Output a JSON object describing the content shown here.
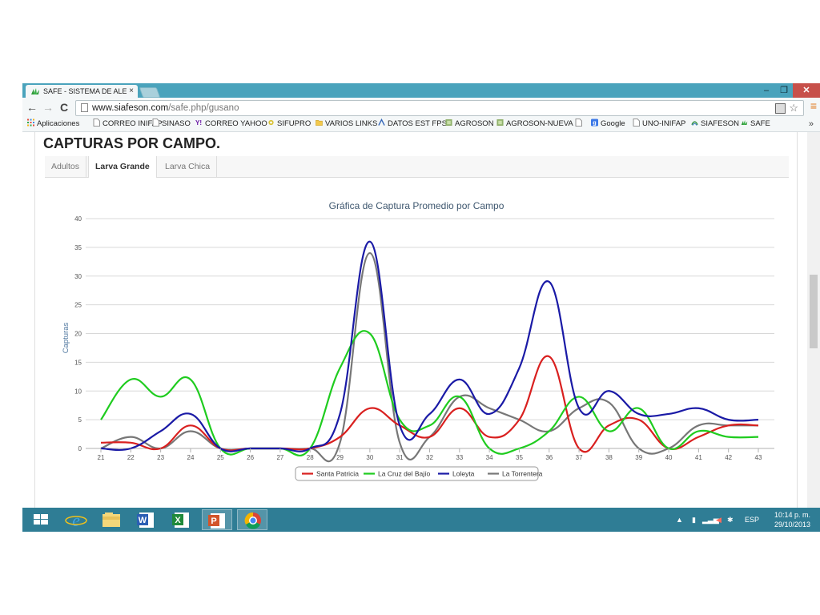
{
  "browser": {
    "tab_title": "SAFE - SISTEMA DE ALERT",
    "tab_close": "×",
    "url_host": "www.siafeson.com",
    "url_path": "/safe.php/gusano",
    "window_buttons": {
      "minimize": "–",
      "restore": "❐",
      "close": "✕"
    },
    "nav": {
      "back": "←",
      "forward": "→",
      "reload": "C"
    }
  },
  "bookmarks": {
    "items": [
      {
        "label": "Aplicaciones",
        "icon": "apps-grid-icon"
      },
      {
        "label": "CORREO INIFAP",
        "icon": "page-icon"
      },
      {
        "label": "SINASO",
        "icon": "page-icon"
      },
      {
        "label": "CORREO YAHOO",
        "icon": "yahoo-icon"
      },
      {
        "label": "SIFUPRO",
        "icon": "sifupro-icon"
      },
      {
        "label": "VARIOS LINKS",
        "icon": "folder-icon"
      },
      {
        "label": "DATOS EST FPS",
        "icon": "chart-icon"
      },
      {
        "label": "AGROSON",
        "icon": "agroson-icon"
      },
      {
        "label": "AGROSON-NUEVA",
        "icon": "agroson-icon"
      },
      {
        "label": "",
        "icon": "page-icon"
      },
      {
        "label": "Google",
        "icon": "google-icon"
      },
      {
        "label": "UNO-INIFAP",
        "icon": "page-icon"
      },
      {
        "label": "SIAFESON",
        "icon": "siafeson-icon"
      },
      {
        "label": "SAFE",
        "icon": "safe-icon"
      }
    ],
    "more": "»"
  },
  "page": {
    "heading": "CAPTURAS POR CAMPO.",
    "tabs": [
      {
        "label": "Adultos",
        "active": false
      },
      {
        "label": "Larva Grande",
        "active": true
      },
      {
        "label": "Larva Chica",
        "active": false
      }
    ]
  },
  "chart_data": {
    "type": "line",
    "title": "Gráfica de Captura Promedio por Campo",
    "xlabel": "",
    "ylabel": "Capturas",
    "categories": [
      "21",
      "22",
      "23",
      "24",
      "25",
      "26",
      "27",
      "28",
      "29",
      "30",
      "31",
      "32",
      "33",
      "34",
      "35",
      "36",
      "37",
      "38",
      "39",
      "40",
      "41",
      "42",
      "43"
    ],
    "ylim": [
      0,
      40
    ],
    "yticks": [
      0,
      5,
      10,
      15,
      20,
      25,
      30,
      35,
      40
    ],
    "grid": true,
    "legend_position": "bottom",
    "series": [
      {
        "name": "Santa Patricia",
        "color": "#d9201f",
        "values": [
          1,
          1,
          0,
          4,
          0,
          0,
          0,
          0,
          2,
          7,
          4,
          2,
          7,
          2,
          5,
          16,
          0,
          4,
          5,
          0,
          2,
          4,
          4
        ]
      },
      {
        "name": "La Cruz del Bajío",
        "color": "#1fcc1f",
        "values": [
          5,
          12,
          9,
          12,
          0,
          0,
          0,
          0,
          14,
          20,
          5,
          4,
          9,
          0,
          0,
          3,
          9,
          3,
          7,
          0,
          3,
          2,
          2
        ]
      },
      {
        "name": "Loleyta",
        "color": "#1a1aa6",
        "values": [
          0,
          0,
          3,
          6,
          0,
          0,
          0,
          0,
          6,
          36,
          4,
          6,
          12,
          6,
          14,
          29,
          7,
          10,
          6,
          6,
          7,
          5,
          5
        ]
      },
      {
        "name": "La Torrentera",
        "color": "#777777",
        "values": [
          0,
          2,
          0,
          3,
          0,
          0,
          0,
          0,
          1,
          34,
          1,
          2,
          9,
          7,
          5,
          3,
          7,
          8,
          0,
          0,
          4,
          4,
          4
        ]
      }
    ]
  },
  "taskbar": {
    "apps": [
      "windows-start-icon",
      "internet-explorer-icon",
      "file-explorer-icon",
      "word-icon",
      "excel-icon",
      "powerpoint-icon",
      "chrome-icon"
    ],
    "language": "ESP",
    "time": "10:14 p. m.",
    "date": "29/10/2013"
  },
  "colors": {
    "tabstrip": "#4aa3bc",
    "taskbar": "#2f7d95"
  }
}
